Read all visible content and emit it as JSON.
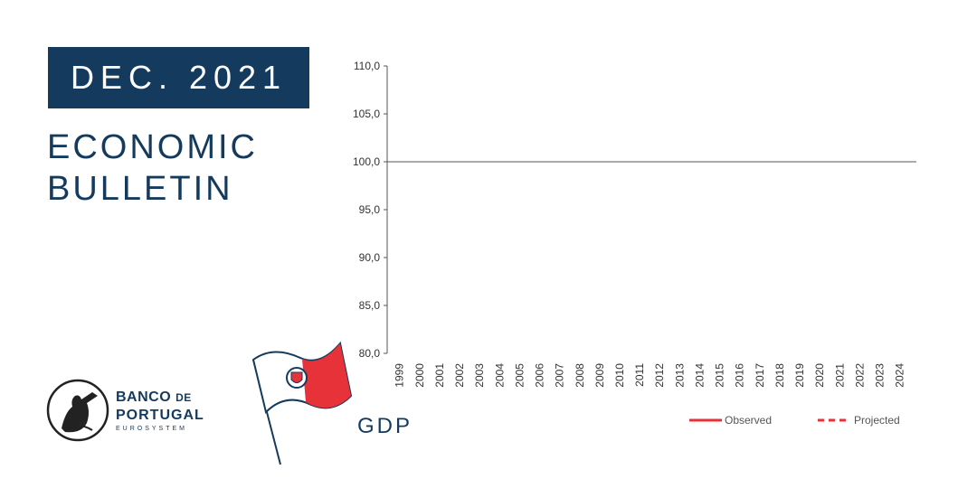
{
  "header": {
    "date_label": "DEC. 2021",
    "title_line1": "ECONOMIC",
    "title_line2": "BULLETIN"
  },
  "logo": {
    "name_line1": "BANCO",
    "name_line1_small": "DE",
    "name_line2": "PORTUGAL",
    "name_line3": "EUROSYSTEM"
  },
  "flag": {
    "color_red": "#e63238",
    "color_navy": "#143b5e"
  },
  "indicator_label": "GDP",
  "colors": {
    "brand_navy": "#143b5e",
    "observed": "#e63238",
    "projected": "#e63238"
  },
  "chart_data": {
    "type": "line",
    "x": [
      "1999",
      "2000",
      "2001",
      "2002",
      "2003",
      "2004",
      "2005",
      "2006",
      "2007",
      "2008",
      "2009",
      "2010",
      "2011",
      "2012",
      "2013",
      "2014",
      "2015",
      "2016",
      "2017",
      "2018",
      "2019",
      "2020",
      "2021",
      "2022",
      "2023",
      "2024"
    ],
    "ylim": [
      80,
      110
    ],
    "yticks": [
      "80,0",
      "85,0",
      "90,0",
      "95,0",
      "100,0",
      "105,0",
      "110,0"
    ],
    "reference_line": 100,
    "grid": false,
    "legend": [
      {
        "label": "Observed",
        "style": "solid"
      },
      {
        "label": "Projected",
        "style": "dashed"
      }
    ],
    "legend_position": "bottom-right",
    "series": []
  }
}
